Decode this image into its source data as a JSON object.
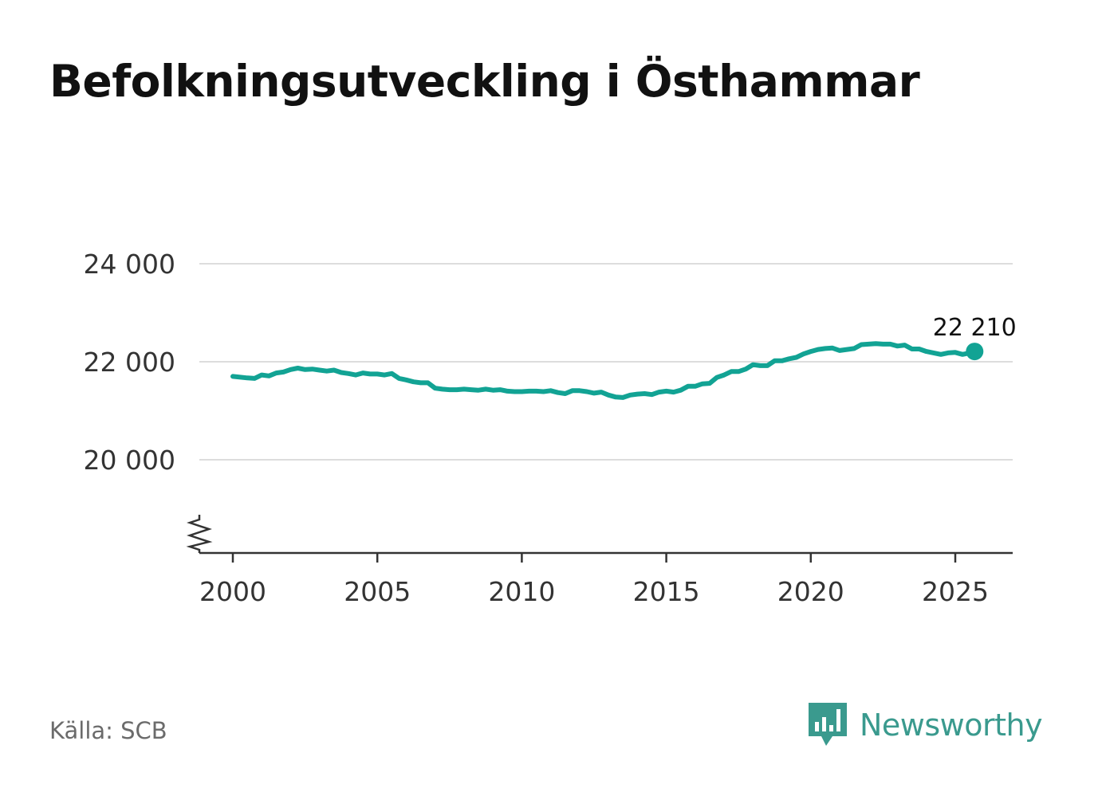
{
  "title": "Befolkningsutveckling i Östhammar",
  "source": "Källa: SCB",
  "brand": {
    "name": "Newsworthy",
    "icon": "newsworthy-logo-icon",
    "color": "#3a9a8e"
  },
  "colors": {
    "line": "#12a394",
    "grid": "#dddddd",
    "axis": "#333333"
  },
  "chart_data": {
    "type": "line",
    "title": "Befolkningsutveckling i Östhammar",
    "xlabel": "",
    "ylabel": "",
    "xlim": [
      1999.0,
      2027.0
    ],
    "ylim": [
      18000,
      24000
    ],
    "axis_break": true,
    "grid": "horizontal",
    "yticks": [
      {
        "value": 20000,
        "label": "20 000"
      },
      {
        "value": 22000,
        "label": "22 000"
      },
      {
        "value": 24000,
        "label": "24 000"
      }
    ],
    "xticks": [
      {
        "value": 2000,
        "label": "2000"
      },
      {
        "value": 2005,
        "label": "2005"
      },
      {
        "value": 2010,
        "label": "2010"
      },
      {
        "value": 2015,
        "label": "2015"
      },
      {
        "value": 2020,
        "label": "2020"
      },
      {
        "value": 2025,
        "label": "2025"
      }
    ],
    "last_label": "22 210",
    "series": [
      {
        "values": [
          [
            2000.0,
            21700
          ],
          [
            2000.5,
            21670
          ],
          [
            2000.75,
            21660
          ],
          [
            2001.0,
            21730
          ],
          [
            2001.25,
            21710
          ],
          [
            2001.5,
            21770
          ],
          [
            2001.75,
            21790
          ],
          [
            2002.0,
            21840
          ],
          [
            2002.25,
            21870
          ],
          [
            2002.5,
            21840
          ],
          [
            2002.75,
            21850
          ],
          [
            2003.0,
            21830
          ],
          [
            2003.25,
            21810
          ],
          [
            2003.5,
            21830
          ],
          [
            2003.75,
            21780
          ],
          [
            2004.0,
            21760
          ],
          [
            2004.25,
            21730
          ],
          [
            2004.5,
            21770
          ],
          [
            2004.75,
            21750
          ],
          [
            2005.0,
            21750
          ],
          [
            2005.25,
            21730
          ],
          [
            2005.5,
            21760
          ],
          [
            2005.75,
            21660
          ],
          [
            2006.0,
            21630
          ],
          [
            2006.25,
            21590
          ],
          [
            2006.5,
            21570
          ],
          [
            2006.75,
            21570
          ],
          [
            2007.0,
            21460
          ],
          [
            2007.25,
            21440
          ],
          [
            2007.5,
            21430
          ],
          [
            2007.75,
            21430
          ],
          [
            2008.0,
            21440
          ],
          [
            2008.25,
            21430
          ],
          [
            2008.5,
            21420
          ],
          [
            2008.75,
            21440
          ],
          [
            2009.0,
            21420
          ],
          [
            2009.25,
            21430
          ],
          [
            2009.5,
            21400
          ],
          [
            2009.75,
            21390
          ],
          [
            2010.0,
            21390
          ],
          [
            2010.25,
            21400
          ],
          [
            2010.5,
            21400
          ],
          [
            2010.75,
            21390
          ],
          [
            2011.0,
            21410
          ],
          [
            2011.25,
            21370
          ],
          [
            2011.5,
            21350
          ],
          [
            2011.75,
            21410
          ],
          [
            2012.0,
            21410
          ],
          [
            2012.25,
            21390
          ],
          [
            2012.5,
            21360
          ],
          [
            2012.75,
            21380
          ],
          [
            2013.0,
            21320
          ],
          [
            2013.25,
            21280
          ],
          [
            2013.5,
            21270
          ],
          [
            2013.75,
            21320
          ],
          [
            2014.0,
            21340
          ],
          [
            2014.25,
            21350
          ],
          [
            2014.5,
            21330
          ],
          [
            2014.75,
            21380
          ],
          [
            2015.0,
            21400
          ],
          [
            2015.25,
            21380
          ],
          [
            2015.5,
            21420
          ],
          [
            2015.75,
            21500
          ],
          [
            2016.0,
            21500
          ],
          [
            2016.25,
            21550
          ],
          [
            2016.5,
            21560
          ],
          [
            2016.75,
            21680
          ],
          [
            2017.0,
            21730
          ],
          [
            2017.25,
            21800
          ],
          [
            2017.5,
            21800
          ],
          [
            2017.75,
            21850
          ],
          [
            2018.0,
            21940
          ],
          [
            2018.25,
            21920
          ],
          [
            2018.5,
            21920
          ],
          [
            2018.75,
            22020
          ],
          [
            2019.0,
            22020
          ],
          [
            2019.25,
            22060
          ],
          [
            2019.5,
            22090
          ],
          [
            2019.75,
            22160
          ],
          [
            2020.0,
            22210
          ],
          [
            2020.25,
            22250
          ],
          [
            2020.5,
            22270
          ],
          [
            2020.75,
            22280
          ],
          [
            2021.0,
            22230
          ],
          [
            2021.25,
            22250
          ],
          [
            2021.5,
            22270
          ],
          [
            2021.75,
            22350
          ],
          [
            2022.0,
            22360
          ],
          [
            2022.25,
            22370
          ],
          [
            2022.5,
            22360
          ],
          [
            2022.75,
            22360
          ],
          [
            2023.0,
            22320
          ],
          [
            2023.25,
            22340
          ],
          [
            2023.5,
            22260
          ],
          [
            2023.75,
            22260
          ],
          [
            2024.0,
            22210
          ],
          [
            2024.25,
            22180
          ],
          [
            2024.5,
            22150
          ],
          [
            2024.75,
            22180
          ],
          [
            2025.0,
            22190
          ],
          [
            2025.25,
            22150
          ],
          [
            2025.5,
            22180
          ],
          [
            2025.67,
            22210
          ]
        ]
      }
    ]
  }
}
